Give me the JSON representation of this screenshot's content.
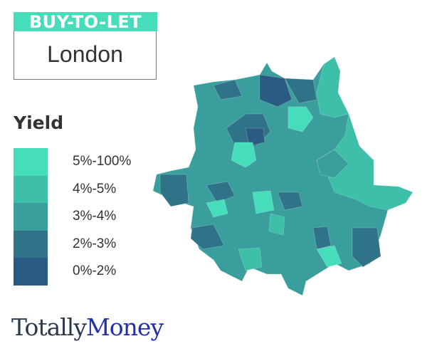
{
  "header": {
    "badge": "BUY-TO-LET",
    "city": "London"
  },
  "legend": {
    "title": "Yield",
    "items": [
      {
        "label": "5%-100%",
        "color": "#45DDBA"
      },
      {
        "label": "4%-5%",
        "color": "#3DBFAA"
      },
      {
        "label": "3%-4%",
        "color": "#3A9E9C"
      },
      {
        "label": "2%-3%",
        "color": "#2F7389"
      },
      {
        "label": "0%-2%",
        "color": "#2B5A82"
      }
    ]
  },
  "logo": {
    "part1": "Totally",
    "part2": "Money"
  }
}
